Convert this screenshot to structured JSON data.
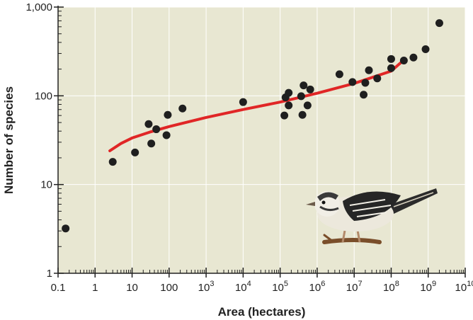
{
  "chart_data": {
    "type": "scatter",
    "title": "",
    "xlabel": "Area (hectares)",
    "ylabel": "Number of species",
    "x_scale": "log",
    "y_scale": "log",
    "xlim": [
      0.1,
      10000000000
    ],
    "ylim": [
      1,
      1000
    ],
    "grid": true,
    "x_ticks": [
      {
        "value": 0.1,
        "base": "0.1",
        "exp": ""
      },
      {
        "value": 1,
        "base": "1",
        "exp": ""
      },
      {
        "value": 10,
        "base": "10",
        "exp": ""
      },
      {
        "value": 100,
        "base": "100",
        "exp": ""
      },
      {
        "value": 1000,
        "base": "10",
        "exp": "3"
      },
      {
        "value": 10000,
        "base": "10",
        "exp": "4"
      },
      {
        "value": 100000,
        "base": "10",
        "exp": "5"
      },
      {
        "value": 1000000,
        "base": "10",
        "exp": "6"
      },
      {
        "value": 10000000,
        "base": "10",
        "exp": "7"
      },
      {
        "value": 100000000,
        "base": "10",
        "exp": "8"
      },
      {
        "value": 1000000000,
        "base": "10",
        "exp": "9"
      },
      {
        "value": 10000000000,
        "base": "10",
        "exp": "10"
      }
    ],
    "y_ticks": [
      {
        "value": 1,
        "label": "1"
      },
      {
        "value": 10,
        "label": "10"
      },
      {
        "value": 100,
        "label": "100"
      },
      {
        "value": 1000,
        "label": "1,000"
      }
    ],
    "points": [
      {
        "x": 0.16,
        "y": 3.2
      },
      {
        "x": 3,
        "y": 18
      },
      {
        "x": 12,
        "y": 23
      },
      {
        "x": 28,
        "y": 48
      },
      {
        "x": 33,
        "y": 29
      },
      {
        "x": 45,
        "y": 42
      },
      {
        "x": 85,
        "y": 36
      },
      {
        "x": 92,
        "y": 61
      },
      {
        "x": 230,
        "y": 72
      },
      {
        "x": 10000,
        "y": 85
      },
      {
        "x": 130000,
        "y": 60
      },
      {
        "x": 140000,
        "y": 96
      },
      {
        "x": 170000,
        "y": 108
      },
      {
        "x": 170000,
        "y": 78
      },
      {
        "x": 370000,
        "y": 99
      },
      {
        "x": 400000,
        "y": 61
      },
      {
        "x": 430000,
        "y": 131
      },
      {
        "x": 550000,
        "y": 78
      },
      {
        "x": 650000,
        "y": 118
      },
      {
        "x": 4000000,
        "y": 175
      },
      {
        "x": 9000000,
        "y": 143
      },
      {
        "x": 18000000,
        "y": 103
      },
      {
        "x": 20000000,
        "y": 140
      },
      {
        "x": 25000000,
        "y": 194
      },
      {
        "x": 42000000,
        "y": 157
      },
      {
        "x": 100000000,
        "y": 260
      },
      {
        "x": 100000000,
        "y": 205
      },
      {
        "x": 220000000,
        "y": 250
      },
      {
        "x": 400000000,
        "y": 270
      },
      {
        "x": 850000000,
        "y": 335
      },
      {
        "x": 2000000000,
        "y": 660
      }
    ],
    "fit_line": {
      "x": [
        2.5,
        5,
        10,
        30,
        100,
        1000,
        10000,
        100000,
        1000000,
        10000000,
        100000000,
        200000000
      ],
      "y": [
        24,
        29,
        33.5,
        39,
        45,
        57,
        70,
        85,
        107,
        138,
        190,
        245
      ]
    },
    "colors": {
      "background": "#e8e7d2",
      "grid": "#ffffff",
      "point": "#1f1f1f",
      "fit_line": "#e02626"
    },
    "illustration": "bird"
  }
}
